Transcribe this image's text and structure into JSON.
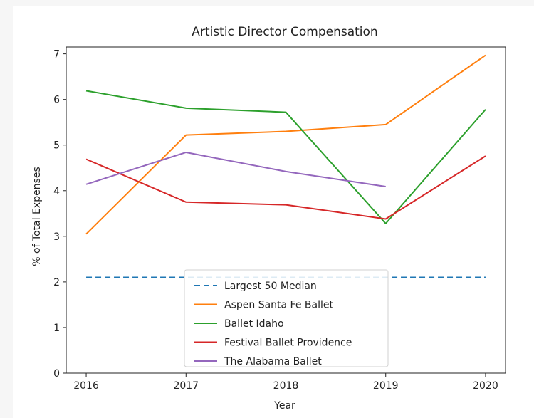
{
  "chart_data": {
    "type": "line",
    "title": "Artistic Director Compensation",
    "xlabel": "Year",
    "ylabel": "% of Total Expenses",
    "x": [
      2016,
      2017,
      2018,
      2019,
      2020
    ],
    "xticks": [
      "2016",
      "2017",
      "2018",
      "2019",
      "2020"
    ],
    "yticks": [
      "0",
      "1",
      "2",
      "3",
      "4",
      "5",
      "6",
      "7"
    ],
    "xlim": [
      2015.8,
      2020.2
    ],
    "ylim": [
      0,
      7.15
    ],
    "grid": false,
    "legend_position": "lower-center",
    "series": [
      {
        "name": "Largest 50 Median",
        "color": "#1f77b4",
        "dashed": true,
        "values": [
          2.1,
          2.1,
          2.1,
          2.1,
          2.1
        ]
      },
      {
        "name": "Aspen Santa Fe Ballet",
        "color": "#ff7f0e",
        "dashed": false,
        "values": [
          3.05,
          5.22,
          5.3,
          5.45,
          6.97
        ]
      },
      {
        "name": "Ballet Idaho",
        "color": "#2ca02c",
        "dashed": false,
        "values": [
          6.19,
          5.81,
          5.72,
          3.28,
          5.78
        ]
      },
      {
        "name": "Festival Ballet Providence",
        "color": "#d62728",
        "dashed": false,
        "values": [
          4.69,
          3.75,
          3.69,
          3.38,
          4.76
        ]
      },
      {
        "name": "The Alabama Ballet",
        "color": "#9467bd",
        "dashed": false,
        "values": [
          4.14,
          4.84,
          4.42,
          4.09,
          null
        ]
      }
    ]
  }
}
